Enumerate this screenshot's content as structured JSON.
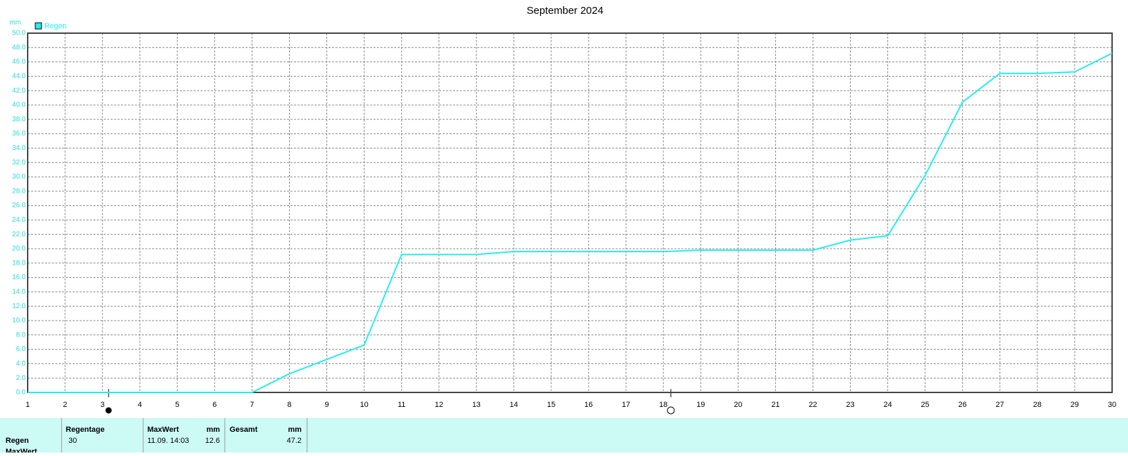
{
  "chart_data": {
    "type": "line",
    "title": "September 2024",
    "y_unit": "mm",
    "x": [
      1,
      2,
      3,
      4,
      5,
      6,
      7,
      8,
      9,
      10,
      11,
      12,
      13,
      14,
      15,
      16,
      17,
      18,
      19,
      20,
      21,
      22,
      23,
      24,
      25,
      26,
      27,
      28,
      29,
      30
    ],
    "series": [
      {
        "name": "Regen",
        "color": "#22eeee",
        "values": [
          0,
          0,
          0,
          0,
          0,
          0,
          0,
          2.6,
          4.6,
          6.6,
          19.2,
          19.2,
          19.2,
          19.6,
          19.6,
          19.6,
          19.6,
          19.6,
          19.8,
          19.8,
          19.8,
          19.8,
          21.2,
          21.8,
          30.2,
          40.4,
          44.4,
          44.4,
          44.6,
          47.2
        ]
      }
    ],
    "xlim": [
      1,
      30
    ],
    "xticks": [
      1,
      2,
      3,
      4,
      5,
      6,
      7,
      8,
      9,
      10,
      11,
      12,
      13,
      14,
      15,
      16,
      17,
      18,
      19,
      20,
      21,
      22,
      23,
      24,
      25,
      26,
      27,
      28,
      29,
      30
    ],
    "ylim": [
      0,
      50
    ],
    "yticks": [
      {
        "value": 0,
        "label": "0.0"
      },
      {
        "value": 2,
        "label": "2.0"
      },
      {
        "value": 4,
        "label": "4.0"
      },
      {
        "value": 6,
        "label": "6.0"
      },
      {
        "value": 8,
        "label": "8.0"
      },
      {
        "value": 10,
        "label": "10.0"
      },
      {
        "value": 12,
        "label": "12.0"
      },
      {
        "value": 14,
        "label": "14.0"
      },
      {
        "value": 16,
        "label": "16.0"
      },
      {
        "value": 18,
        "label": "18.0"
      },
      {
        "value": 20,
        "label": "20.0"
      },
      {
        "value": 22,
        "label": "22.0"
      },
      {
        "value": 24,
        "label": "24.0"
      },
      {
        "value": 26,
        "label": "26.0"
      },
      {
        "value": 28,
        "label": "28.0"
      },
      {
        "value": 30,
        "label": "30.0"
      },
      {
        "value": 32,
        "label": "32.0"
      },
      {
        "value": 34,
        "label": "34.0"
      },
      {
        "value": 36,
        "label": "36.0"
      },
      {
        "value": 38,
        "label": "38.0"
      },
      {
        "value": 40,
        "label": "40.0"
      },
      {
        "value": 42,
        "label": "42.0"
      },
      {
        "value": 44,
        "label": "44.0"
      },
      {
        "value": 46,
        "label": "46.0"
      },
      {
        "value": 48,
        "label": "48.0"
      },
      {
        "value": 50,
        "label": "50.0"
      }
    ],
    "grid": true,
    "legend": "top-left"
  },
  "table": {
    "header": [
      "Regentage",
      "MaxWert",
      "mm",
      "Gesamt",
      "mm"
    ],
    "rows": [
      [
        "Regen",
        "30",
        "11.09. 14:03",
        "12.6",
        "47.2"
      ],
      [
        "MaxWert"
      ]
    ]
  }
}
